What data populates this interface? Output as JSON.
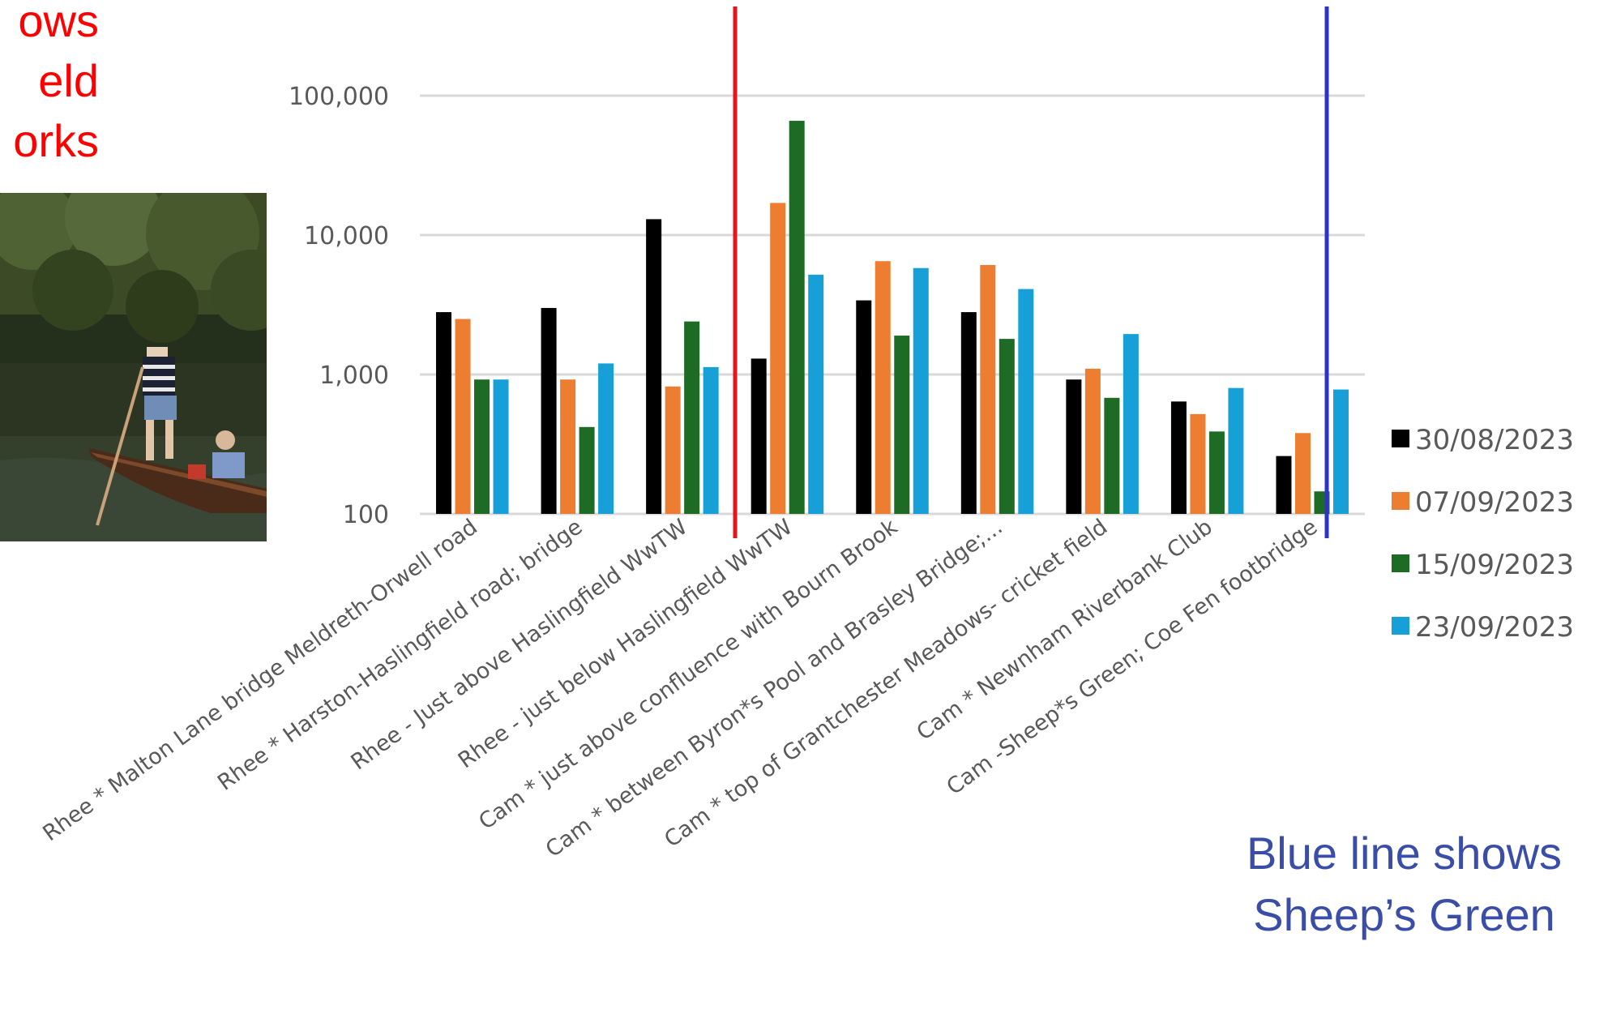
{
  "annotations": {
    "red_caption_lines": [
      "ows",
      "eld",
      "orks"
    ],
    "blue_caption_lines": [
      "Blue line shows",
      "Sheep’s Green"
    ],
    "colors": {
      "red_line": "#e8131b",
      "blue_line": "#2b34c4",
      "red_text": "#ff0000",
      "blue_text": "#3a4ea8"
    }
  },
  "chart_data": {
    "type": "bar",
    "y_scale": "log",
    "ylim": [
      100,
      100000
    ],
    "y_ticks": [
      100,
      1000,
      10000,
      100000
    ],
    "y_tick_labels": [
      "100",
      "1,000",
      "10,000",
      "100,000"
    ],
    "grid": true,
    "legend_position": "right",
    "categories": [
      "Rhee * Malton Lane bridge Meldreth-Orwell road",
      "Rhee * Harston-Haslingfield road; bridge",
      "Rhee - Just above Haslingfield WwTW",
      "Rhee - just below Haslingfield WwTW",
      "Cam * just above confluence with Bourn Brook",
      "Cam * between Byron*s Pool and Brasley Bridge;...",
      "Cam * top of Grantchester Meadows- cricket field",
      "Cam * Newnham Riverbank Club",
      "Cam -Sheep*s Green; Coe Fen footbridge"
    ],
    "series": [
      {
        "name": "30/08/2023",
        "color": "#000000",
        "values": [
          2800,
          3000,
          13000,
          1300,
          3400,
          2800,
          920,
          640,
          260
        ]
      },
      {
        "name": "07/09/2023",
        "color": "#ed7d31",
        "values": [
          2500,
          920,
          820,
          17000,
          6500,
          6100,
          1100,
          520,
          380
        ]
      },
      {
        "name": "15/09/2023",
        "color": "#1e6b25",
        "values": [
          920,
          420,
          2400,
          66000,
          1900,
          1800,
          680,
          390,
          145
        ]
      },
      {
        "name": "23/09/2023",
        "color": "#17a0d8",
        "values": [
          920,
          1200,
          1130,
          5200,
          5800,
          4100,
          1950,
          800,
          780
        ]
      }
    ]
  }
}
